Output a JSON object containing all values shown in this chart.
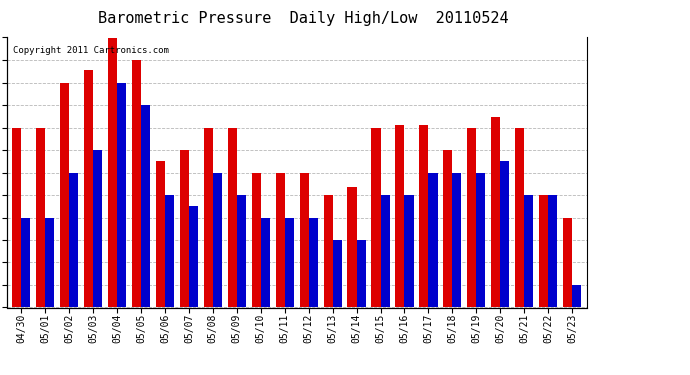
{
  "title": "Barometric Pressure  Daily High/Low  20110524",
  "copyright": "Copyright 2011 Cartronics.com",
  "dates": [
    "04/30",
    "05/01",
    "05/02",
    "05/03",
    "05/04",
    "05/05",
    "05/06",
    "05/07",
    "05/08",
    "05/09",
    "05/10",
    "05/11",
    "05/12",
    "05/13",
    "05/14",
    "05/15",
    "05/16",
    "05/17",
    "05/18",
    "05/19",
    "05/20",
    "05/21",
    "05/22",
    "05/23"
  ],
  "highs": [
    29.98,
    29.98,
    30.153,
    30.2,
    30.326,
    30.24,
    29.85,
    29.894,
    29.98,
    29.98,
    29.807,
    29.807,
    29.807,
    29.721,
    29.75,
    29.98,
    29.99,
    29.99,
    29.894,
    29.98,
    30.02,
    29.98,
    29.721,
    29.634
  ],
  "lows": [
    29.634,
    29.634,
    29.807,
    29.894,
    30.153,
    30.067,
    29.721,
    29.68,
    29.807,
    29.721,
    29.634,
    29.634,
    29.634,
    29.548,
    29.548,
    29.721,
    29.721,
    29.807,
    29.807,
    29.807,
    29.85,
    29.721,
    29.721,
    29.375
  ],
  "high_color": "#dd0000",
  "low_color": "#0000cc",
  "background_color": "#ffffff",
  "plot_bg_color": "#ffffff",
  "grid_color": "#b0b0b0",
  "ymin": 29.289,
  "ymax": 30.326,
  "yticks": [
    29.289,
    29.375,
    29.462,
    29.548,
    29.634,
    29.721,
    29.807,
    29.894,
    29.98,
    30.067,
    30.153,
    30.24,
    30.326
  ],
  "title_fontsize": 11,
  "tick_fontsize": 7,
  "copyright_fontsize": 6.5,
  "bar_width": 0.38
}
